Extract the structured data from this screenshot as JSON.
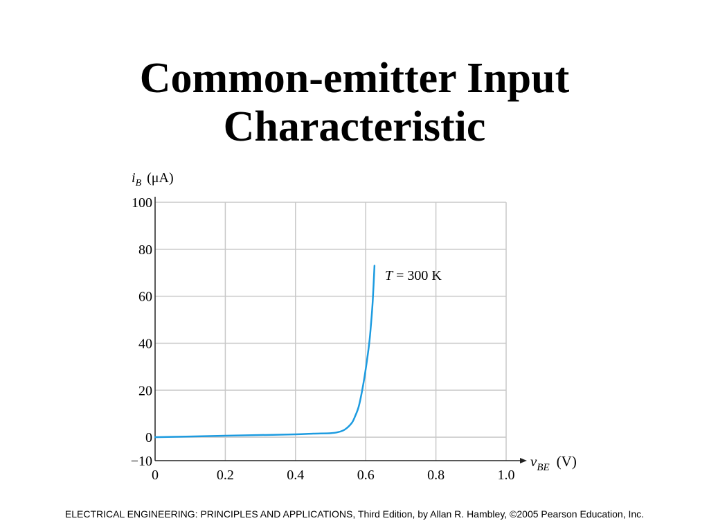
{
  "slide": {
    "title_line1": "Common-emitter Input",
    "title_line2": "Characteristic",
    "footer": "ELECTRICAL ENGINEERING: PRINCIPLES AND APPLICATIONS, Third Edition, by Allan R. Hambley, ©2005 Pearson Education, Inc."
  },
  "chart_data": {
    "type": "line",
    "title": "",
    "ylabel": {
      "symbol": "i",
      "subscript": "B",
      "unit": "(μA)"
    },
    "xlabel": {
      "symbol": "v",
      "subscript": "BE",
      "unit": "(V)"
    },
    "xlim": [
      0,
      1.0
    ],
    "ylim": [
      -10,
      100
    ],
    "x_ticks": [
      0,
      0.2,
      0.4,
      0.6,
      0.8,
      1.0
    ],
    "x_tick_labels": [
      "0",
      "0.2",
      "0.4",
      "0.6",
      "0.8",
      "1.0"
    ],
    "y_ticks": [
      -10,
      0,
      20,
      40,
      60,
      80,
      100
    ],
    "y_tick_labels": [
      "−10",
      "0",
      "20",
      "40",
      "60",
      "80",
      "100"
    ],
    "grid": true,
    "series": [
      {
        "color": "#1c9be0",
        "x": [
          0,
          0.1,
          0.2,
          0.3,
          0.4,
          0.45,
          0.5,
          0.52,
          0.54,
          0.56,
          0.57,
          0.58,
          0.59,
          0.6,
          0.61,
          0.615,
          0.62,
          0.625
        ],
        "y": [
          0,
          0.3,
          0.6,
          0.9,
          1.2,
          1.5,
          1.7,
          2.1,
          3.2,
          6,
          9,
          13,
          20,
          29,
          40,
          48,
          58,
          73
        ]
      }
    ],
    "annotation": {
      "symbol": "T",
      "text": " = 300 K",
      "x": 0.655,
      "y": 69
    }
  }
}
